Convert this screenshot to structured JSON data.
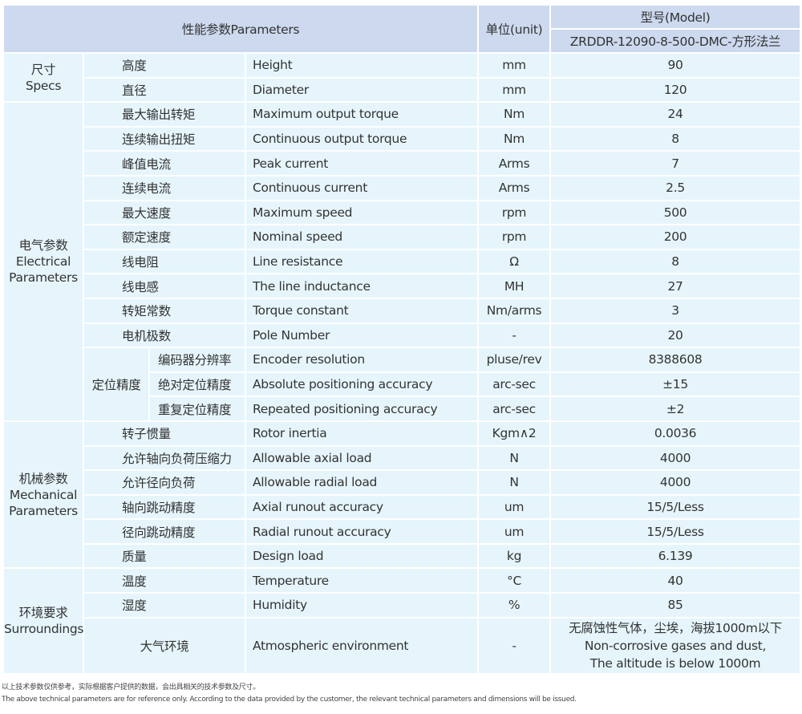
{
  "header": {
    "parameters": "性能参数Parameters",
    "unit": "单位(unit)",
    "model_label": "型号(Model)",
    "model_value": "ZRDDR-12090-8-500-DMC-方形法兰"
  },
  "groups": [
    {
      "zh": "尺寸",
      "en": "Specs",
      "rows": [
        {
          "zh": "高度",
          "en": "Height",
          "unit": "mm",
          "value": "90"
        },
        {
          "zh": "直径",
          "en": "Diameter",
          "unit": "mm",
          "value": "120"
        }
      ]
    },
    {
      "zh": "电气参数",
      "en": "Electrical Parameters",
      "rows": [
        {
          "zh": "最大输出转矩",
          "en": "Maximum output torque",
          "unit": "Nm",
          "value": "24"
        },
        {
          "zh": "连续输出扭矩",
          "en": "Continuous output torque",
          "unit": "Nm",
          "value": "8"
        },
        {
          "zh": "峰值电流",
          "en": "Peak current",
          "unit": "Arms",
          "value": "7"
        },
        {
          "zh": "连续电流",
          "en": "Continuous current",
          "unit": "Arms",
          "value": "2.5"
        },
        {
          "zh": "最大速度",
          "en": "Maximum speed",
          "unit": "rpm",
          "value": "500"
        },
        {
          "zh": "额定速度",
          "en": "Nominal speed",
          "unit": "rpm",
          "value": "200"
        },
        {
          "zh": "线电阻",
          "en": "Line resistance",
          "unit": "Ω",
          "value": "8"
        },
        {
          "zh": "线电感",
          "en": "The line inductance",
          "unit": "MH",
          "value": "27"
        },
        {
          "zh": "转矩常数",
          "en": "Torque constant",
          "unit": "Nm/arms",
          "value": "3"
        },
        {
          "zh": "电机极数",
          "en": "Pole Number",
          "unit": "-",
          "value": "20"
        },
        {
          "subgroup": "定位精度",
          "zh": "编码器分辨率",
          "en": "Encoder resolution",
          "unit": "pluse/rev",
          "value": "8388608"
        },
        {
          "subgroup": "定位精度",
          "zh": "绝对定位精度",
          "en": "Absolute positioning accuracy",
          "unit": "arc-sec",
          "value": "±15"
        },
        {
          "subgroup": "定位精度",
          "zh": "重复定位精度",
          "en": "Repeated positioning accuracy",
          "unit": "arc-sec",
          "value": "±2"
        }
      ]
    },
    {
      "zh": "机械参数",
      "en": "Mechanical Parameters",
      "rows": [
        {
          "zh": "转子惯量",
          "en": "Rotor inertia",
          "unit": "Kgm∧2",
          "value": "0.0036"
        },
        {
          "zh": "允许轴向负荷压缩力",
          "en": "Allowable axial load",
          "unit": "N",
          "value": "4000"
        },
        {
          "zh": "允许径向负荷",
          "en": "Allowable radial load",
          "unit": "N",
          "value": "4000"
        },
        {
          "zh": "轴向跳动精度",
          "en": "Axial runout accuracy",
          "unit": "um",
          "value": "15/5/Less"
        },
        {
          "zh": "径向跳动精度",
          "en": "Radial runout accuracy",
          "unit": "um",
          "value": "15/5/Less"
        },
        {
          "zh": "质量",
          "en": "Design load",
          "unit": "kg",
          "value": "6.139"
        }
      ]
    },
    {
      "zh": "环境要求",
      "en": "Surroundings",
      "rows": [
        {
          "zh": "温度",
          "en": "Temperature",
          "unit": "°C",
          "value": "40"
        },
        {
          "zh": "湿度",
          "en": "Humidity",
          "unit": "%",
          "value": "85"
        },
        {
          "zh": "大气环境",
          "en": "Atmospheric environment",
          "unit": "-",
          "value_lines": [
            "无腐蚀性气体，尘埃，海拔1000m以下",
            "Non-corrosive gases and dust,",
            "The altitude is below 1000m"
          ]
        }
      ]
    }
  ],
  "notes": {
    "zh": "以上技术参数仅供参考，实际根据客户提供的数据，会出具相关的技术参数及尺寸。",
    "en": "The above technical parameters are for reference only. According to the data provided by the customer, the relevant technical parameters and dimensions will be issued."
  },
  "colors": {
    "header_bg": "#cdd9ee",
    "body_bg": "#e6f5fc"
  }
}
